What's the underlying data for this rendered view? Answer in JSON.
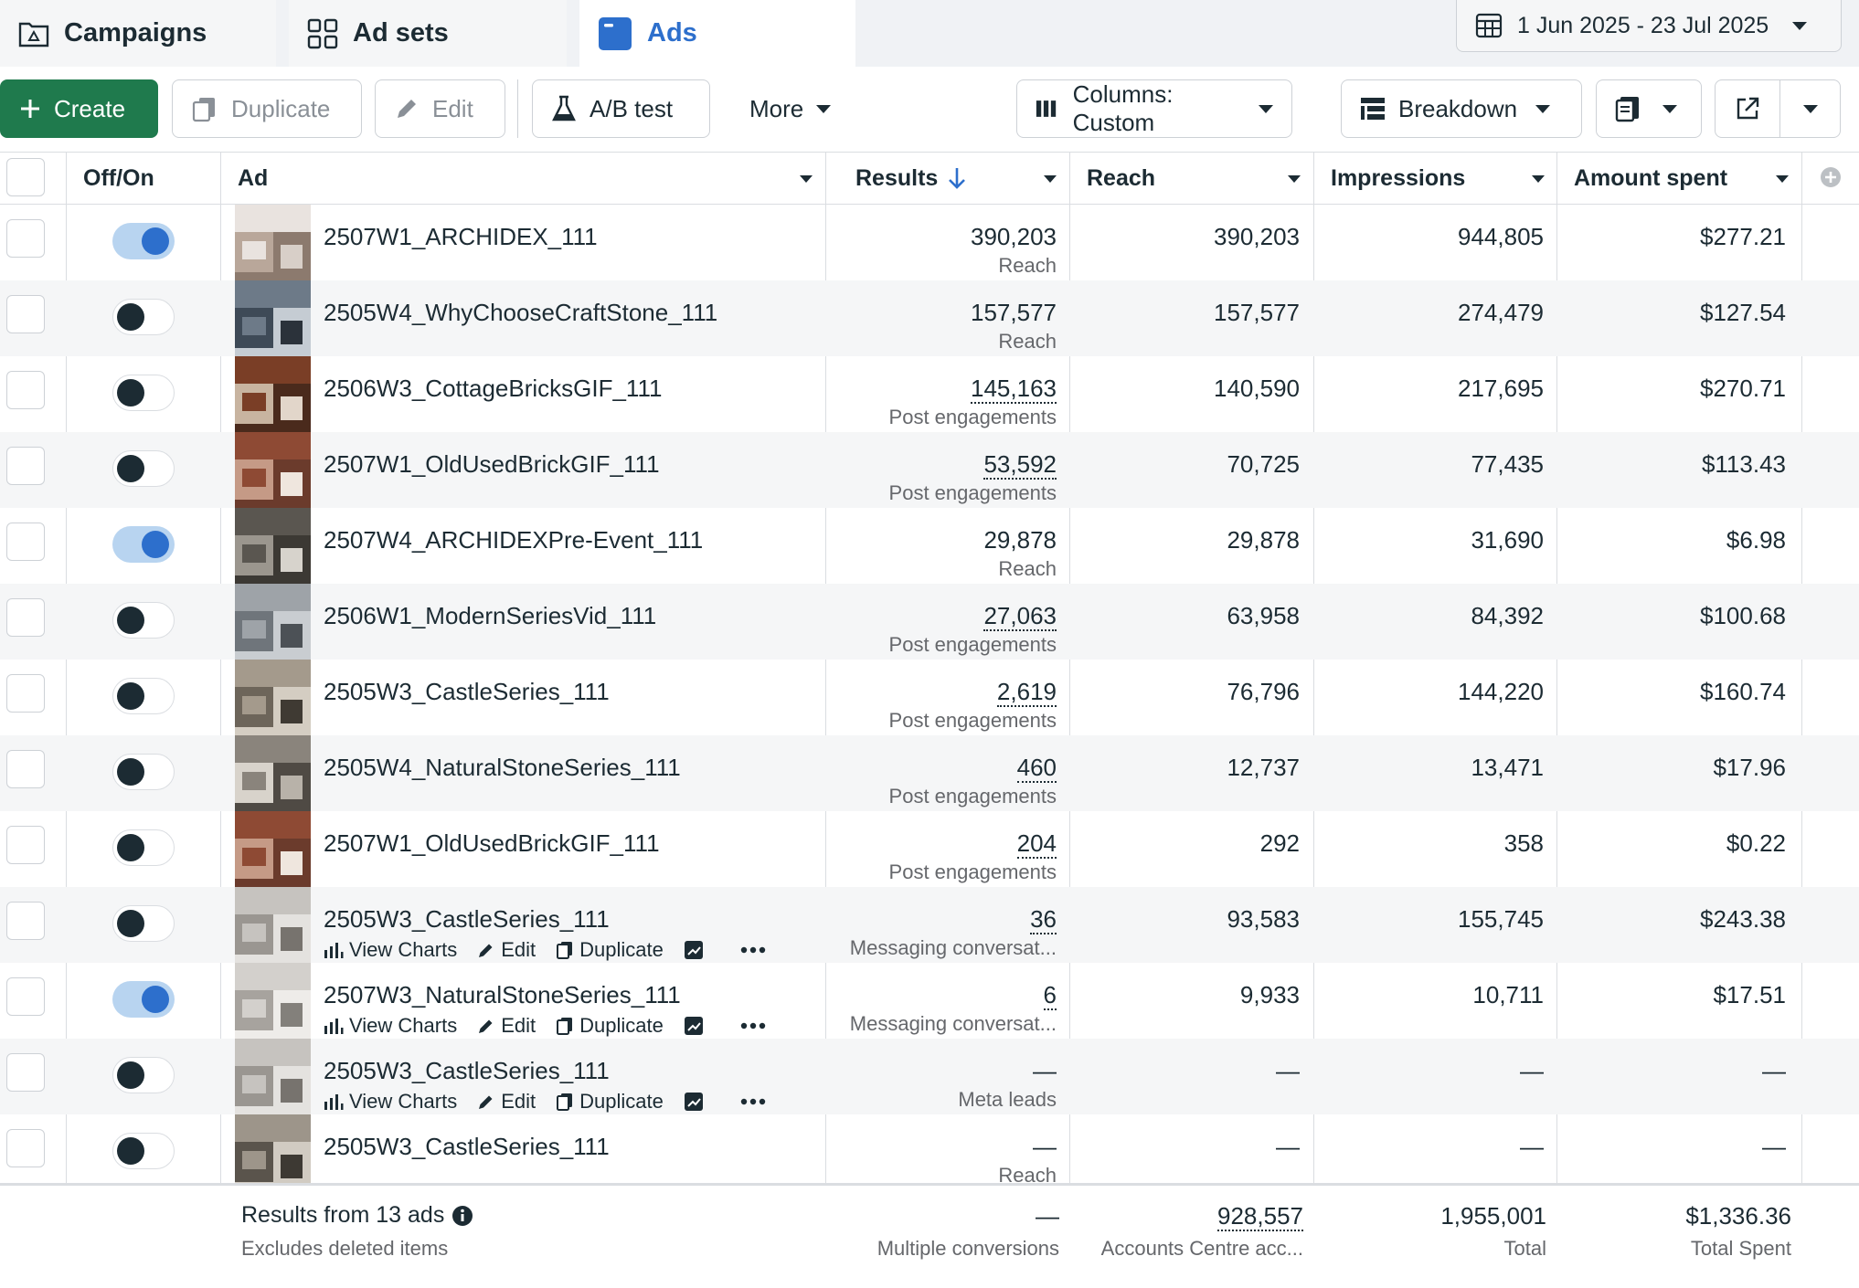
{
  "tabs": {
    "campaigns": "Campaigns",
    "adsets": "Ad sets",
    "ads": "Ads"
  },
  "date_range": "1 Jun 2025 - 23 Jul 2025",
  "toolbar": {
    "create": "Create",
    "duplicate": "Duplicate",
    "edit": "Edit",
    "abtest": "A/B test",
    "more": "More",
    "columns": "Columns: Custom",
    "breakdown": "Breakdown"
  },
  "columns": {
    "offon": "Off/On",
    "ad": "Ad",
    "results": "Results",
    "reach": "Reach",
    "impressions": "Impressions",
    "amount": "Amount spent"
  },
  "hover_actions": {
    "view_charts": "View Charts",
    "edit": "Edit",
    "duplicate": "Duplicate"
  },
  "rows": [
    {
      "name": "2507W1_ARCHIDEX_111",
      "on": true,
      "result": "390,203",
      "result_type": "Reach",
      "reach": "390,203",
      "impressions": "944,805",
      "amount": "$277.21"
    },
    {
      "name": "2505W4_WhyChooseCraftStone_111",
      "on": false,
      "result": "157,577",
      "result_type": "Reach",
      "reach": "157,577",
      "impressions": "274,479",
      "amount": "$127.54"
    },
    {
      "name": "2506W3_CottageBricksGIF_111",
      "on": false,
      "result": "145,163",
      "result_type": "Post engagements",
      "reach": "140,590",
      "impressions": "217,695",
      "amount": "$270.71"
    },
    {
      "name": "2507W1_OldUsedBrickGIF_111",
      "on": false,
      "result": "53,592",
      "result_type": "Post engagements",
      "reach": "70,725",
      "impressions": "77,435",
      "amount": "$113.43"
    },
    {
      "name": "2507W4_ARCHIDEXPre-Event_111",
      "on": true,
      "result": "29,878",
      "result_type": "Reach",
      "reach": "29,878",
      "impressions": "31,690",
      "amount": "$6.98"
    },
    {
      "name": "2506W1_ModernSeriesVid_111",
      "on": false,
      "result": "27,063",
      "result_type": "Post engagements",
      "reach": "63,958",
      "impressions": "84,392",
      "amount": "$100.68"
    },
    {
      "name": "2505W3_CastleSeries_111",
      "on": false,
      "result": "2,619",
      "result_type": "Post engagements",
      "reach": "76,796",
      "impressions": "144,220",
      "amount": "$160.74"
    },
    {
      "name": "2505W4_NaturalStoneSeries_111",
      "on": false,
      "result": "460",
      "result_type": "Post engagements",
      "reach": "12,737",
      "impressions": "13,471",
      "amount": "$17.96"
    },
    {
      "name": "2507W1_OldUsedBrickGIF_111",
      "on": false,
      "result": "204",
      "result_type": "Post engagements",
      "reach": "292",
      "impressions": "358",
      "amount": "$0.22"
    },
    {
      "name": "2505W3_CastleSeries_111",
      "on": false,
      "result": "36",
      "result_type": "Messaging conversat...",
      "reach": "93,583",
      "impressions": "155,745",
      "amount": "$243.38"
    },
    {
      "name": "2507W3_NaturalStoneSeries_111",
      "on": true,
      "result": "6",
      "result_type": "Messaging conversat...",
      "reach": "9,933",
      "impressions": "10,711",
      "amount": "$17.51"
    },
    {
      "name": "2505W3_CastleSeries_111",
      "on": false,
      "result": "—",
      "result_type": "Meta leads",
      "reach": "—",
      "impressions": "—",
      "amount": "—"
    },
    {
      "name": "2505W3_CastleSeries_111",
      "on": false,
      "result": "—",
      "result_type": "Reach",
      "reach": "—",
      "impressions": "—",
      "amount": "—"
    }
  ],
  "footer": {
    "title": "Results from 13 ads",
    "subtitle": "Excludes deleted items",
    "result": "—",
    "result_type": "Multiple conversions",
    "reach": "928,557",
    "reach_type": "Accounts Centre acc...",
    "impressions": "1,955,001",
    "impressions_type": "Total",
    "amount": "$1,336.36",
    "amount_type": "Total Spent"
  },
  "colors": {
    "accent_blue": "#2d6fcc",
    "create_green": "#1f7a4d",
    "row_alt": "#f5f6f7"
  }
}
